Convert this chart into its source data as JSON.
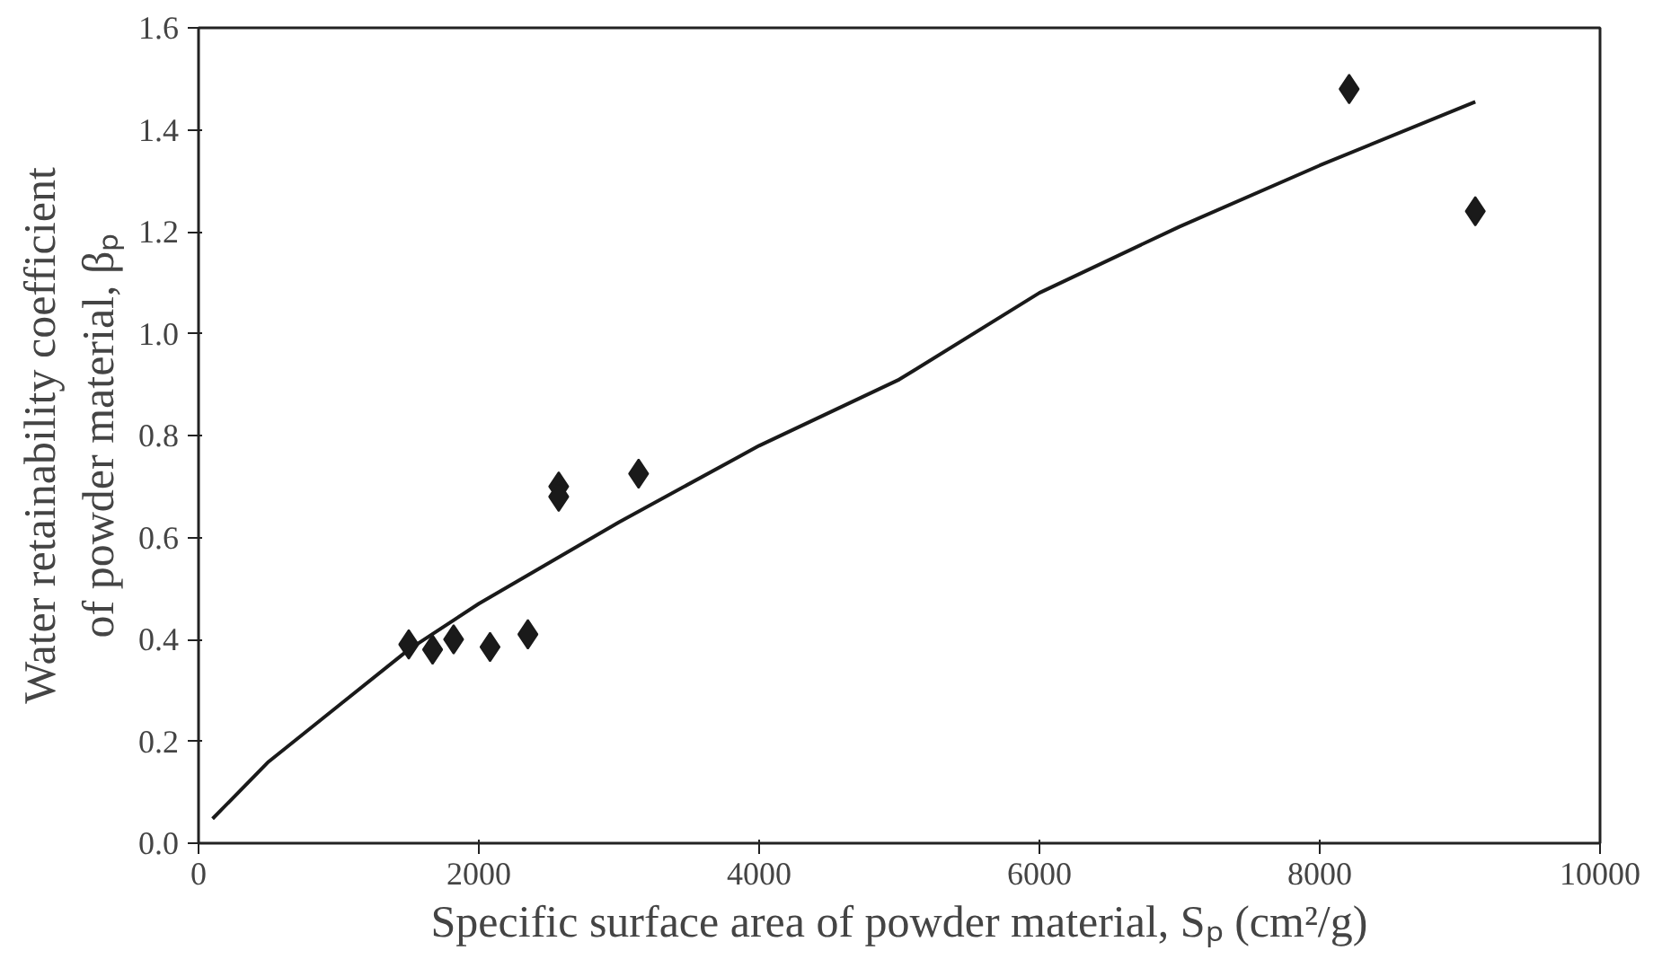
{
  "chart_data": {
    "type": "scatter",
    "xlabel": "Specific surface area of powder material, Sₚ (cm²/g)",
    "ylabel": "Water retainability coefficient\nof powder material, βₚ",
    "xlim": [
      0,
      10000
    ],
    "ylim": [
      0,
      1.6
    ],
    "xticks": [
      0,
      2000,
      4000,
      6000,
      8000,
      10000
    ],
    "yticks": [
      {
        "value": 0,
        "label": "0.0"
      },
      0.2,
      0.4,
      0.6,
      0.8,
      {
        "value": 1,
        "label": "1.0"
      },
      1.2,
      1.4,
      1.6
    ],
    "grid": false,
    "marker": "diamond",
    "series": [
      {
        "color": "#1a1a1a",
        "x": [
          1500,
          1670,
          1820,
          2080,
          2350,
          2570,
          2570,
          3140,
          8210,
          9110
        ],
        "values": [
          0.39,
          0.38,
          0.4,
          0.385,
          0.41,
          0.7,
          0.68,
          0.725,
          1.48,
          1.24
        ]
      },
      {
        "type": "line",
        "color": "#1a1a1a",
        "marker": "none",
        "x": [
          100,
          500,
          1000,
          1500,
          2000,
          3000,
          4000,
          5000,
          6000,
          7000,
          8000,
          9110
        ],
        "values": [
          0.048,
          0.16,
          0.27,
          0.38,
          0.47,
          0.63,
          0.78,
          0.91,
          1.08,
          1.21,
          1.33,
          1.455
        ]
      }
    ]
  }
}
